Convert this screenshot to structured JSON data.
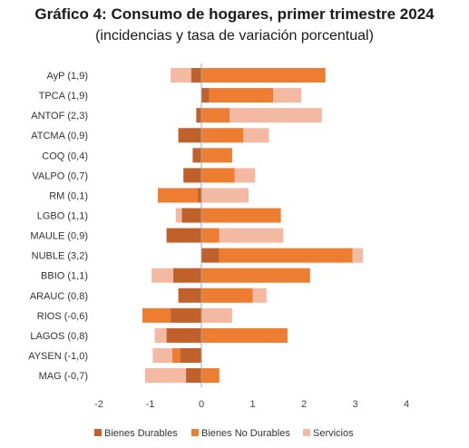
{
  "chart_data": {
    "type": "bar",
    "orientation": "horizontal",
    "stacked": true,
    "title": "Gráfico 4: Consumo de hogares, primer trimestre 2024",
    "subtitle": "(incidencias y tasa de variación porcentual)",
    "categories": [
      "AyP (1,9)",
      "TPCA (1,9)",
      "ANTOF (2,3)",
      "ATCMA (0,9)",
      "COQ (0,4)",
      "VALPO (0,7)",
      "RM (0,1)",
      "LGBO (1,1)",
      "MAULE (0,9)",
      "NUBLE (3,2)",
      "BBIO (1,1)",
      "ARAUC (0,8)",
      "RIOS (-0,6)",
      "LAGOS (0,8)",
      "AYSEN (-1,0)",
      "MAG (-0,7)"
    ],
    "series": [
      {
        "name": "Bienes Durables",
        "color": "#c0602a",
        "values": [
          -0.2,
          0.15,
          -0.1,
          -0.45,
          -0.17,
          -0.35,
          -0.07,
          -0.38,
          -0.68,
          0.35,
          -0.55,
          -0.45,
          -0.6,
          -0.68,
          -0.42,
          -0.3
        ]
      },
      {
        "name": "Bienes No Durables",
        "color": "#ed7d31",
        "values": [
          2.42,
          1.25,
          0.55,
          0.82,
          0.6,
          0.65,
          -0.78,
          1.55,
          0.35,
          2.6,
          2.12,
          1.0,
          -0.55,
          1.68,
          -0.15,
          0.35
        ]
      },
      {
        "name": "Servicios",
        "color": "#f4b9a2",
        "values": [
          -0.4,
          0.55,
          1.8,
          0.5,
          0.0,
          0.4,
          0.92,
          -0.12,
          1.25,
          0.2,
          -0.42,
          0.27,
          0.6,
          -0.23,
          -0.38,
          -0.8
        ]
      }
    ],
    "xlim": [
      -2,
      4
    ],
    "xticks": [
      -2,
      -1,
      0,
      1,
      2,
      3,
      4
    ],
    "grid": false,
    "legend_position": "bottom"
  }
}
